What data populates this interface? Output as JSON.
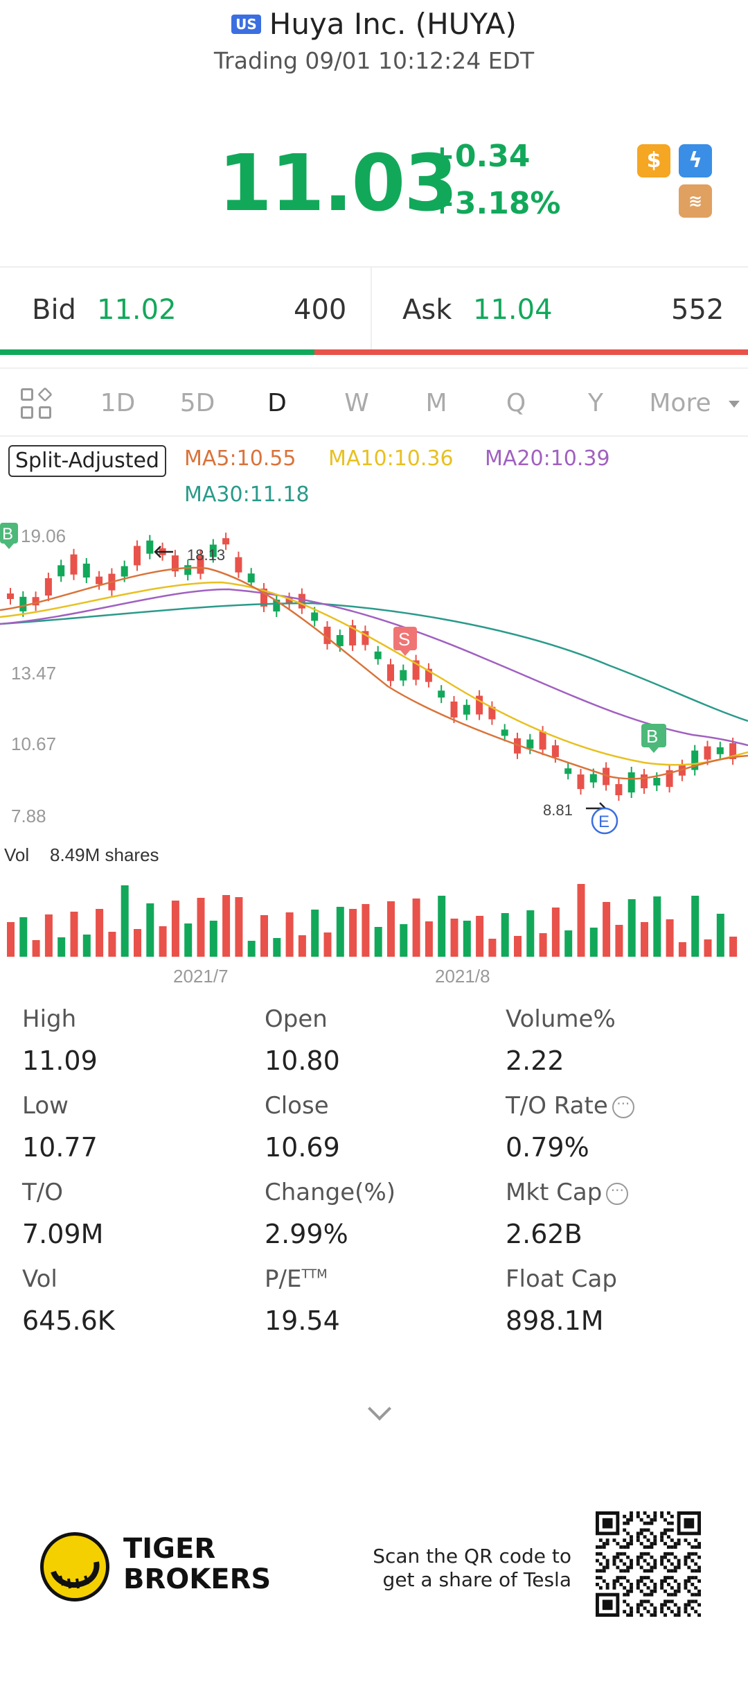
{
  "header": {
    "market_badge": "US",
    "title": "Huya Inc. (HUYA)",
    "status": "Trading 09/01 10:12:24 EDT"
  },
  "quote": {
    "price": "11.03",
    "change": "+0.34",
    "change_pct": "+3.18%",
    "up_color": "#12a85a",
    "down_color": "#e8524a",
    "icons": [
      "dollar-icon",
      "lightning-icon",
      "layers-icon"
    ]
  },
  "bid_ask": {
    "bid_label": "Bid",
    "bid_price": "11.02",
    "bid_size": "400",
    "ask_label": "Ask",
    "ask_price": "11.04",
    "ask_size": "552",
    "bid_fraction": 0.42
  },
  "tabs": {
    "items": [
      "1D",
      "5D",
      "D",
      "W",
      "M",
      "Q",
      "Y",
      "More"
    ],
    "active": "D"
  },
  "indicators": {
    "split_label": "Split-Adjusted",
    "ma5": "MA5:10.55",
    "ma10": "MA10:10.36",
    "ma20": "MA20:10.39",
    "ma30": "MA30:11.18",
    "ma5_color": "#d9733a",
    "ma10_color": "#e8c020",
    "ma20_color": "#a060c0",
    "ma30_color": "#2a9a8a"
  },
  "chart_data": {
    "type": "candlestick",
    "y_ticks": [
      "19.06",
      "13.47",
      "10.67",
      "7.88"
    ],
    "high_marker": "18.13",
    "low_marker": "8.81",
    "x_ticks": [
      "2021/7",
      "2021/8"
    ],
    "markers": [
      "B",
      "S",
      "B",
      "E"
    ],
    "volume_label": "Vol",
    "volume_value": "8.49M shares"
  },
  "stats": [
    {
      "label": "High",
      "value": "11.09"
    },
    {
      "label": "Open",
      "value": "10.80"
    },
    {
      "label": "Volume%",
      "value": "2.22"
    },
    {
      "label": "Low",
      "value": "10.77"
    },
    {
      "label": "Close",
      "value": "10.69"
    },
    {
      "label": "T/O Rate",
      "value": "0.79%"
    },
    {
      "label": "T/O",
      "value": "7.09M"
    },
    {
      "label": "Change(%)",
      "value": "2.99%"
    },
    {
      "label": "Mkt Cap",
      "value": "2.62B"
    },
    {
      "label": "Vol",
      "value": "645.6K"
    },
    {
      "label": "P/E",
      "value": "19.54"
    },
    {
      "label": "Float Cap",
      "value": "898.1M"
    }
  ],
  "pe_superscript": "TTM",
  "footer": {
    "brand_line1": "TIGER",
    "brand_line2": "BROKERS",
    "scan_line1": "Scan the QR code to",
    "scan_line2": "get a share of Tesla"
  }
}
